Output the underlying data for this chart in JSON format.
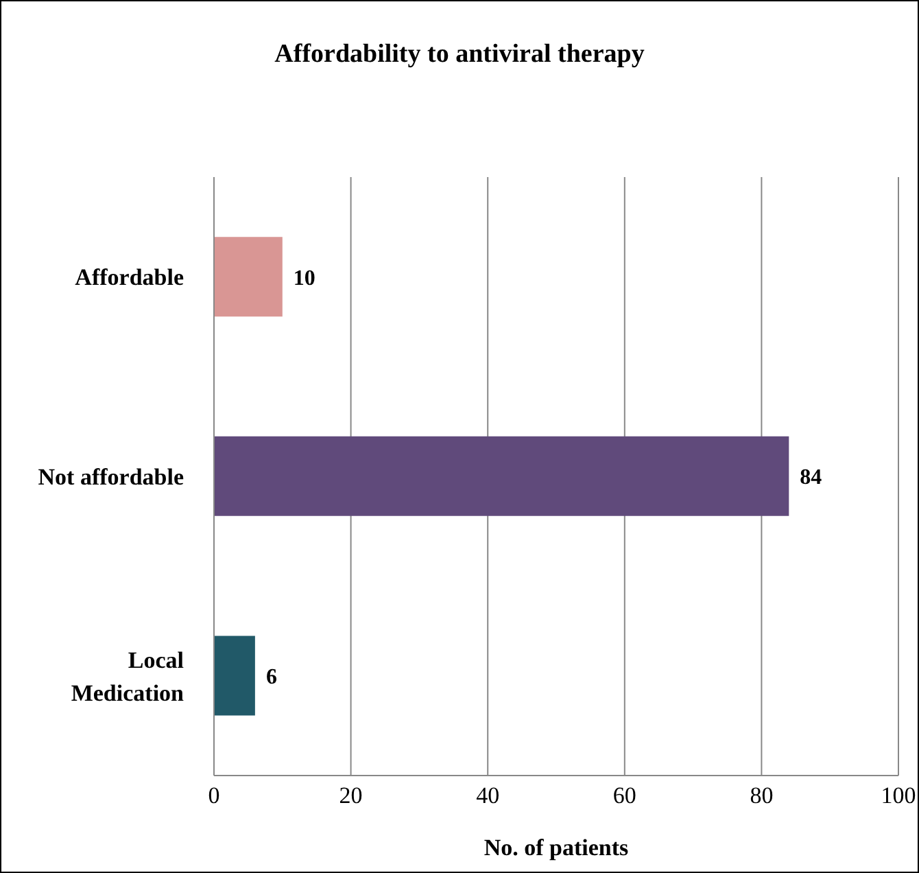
{
  "chart_data": {
    "type": "bar",
    "orientation": "horizontal",
    "title": "Affordability to antiviral therapy",
    "xlabel": "No. of patients",
    "categories": [
      "Affordable",
      "Not affordable",
      "Local Medication"
    ],
    "values": [
      10,
      84,
      6
    ],
    "colors": [
      "#d99694",
      "#604a7b",
      "#215968"
    ],
    "xlim": [
      0,
      100
    ],
    "xticks": [
      0,
      20,
      40,
      60,
      80,
      100
    ],
    "grid": "x",
    "data_labels": true
  }
}
